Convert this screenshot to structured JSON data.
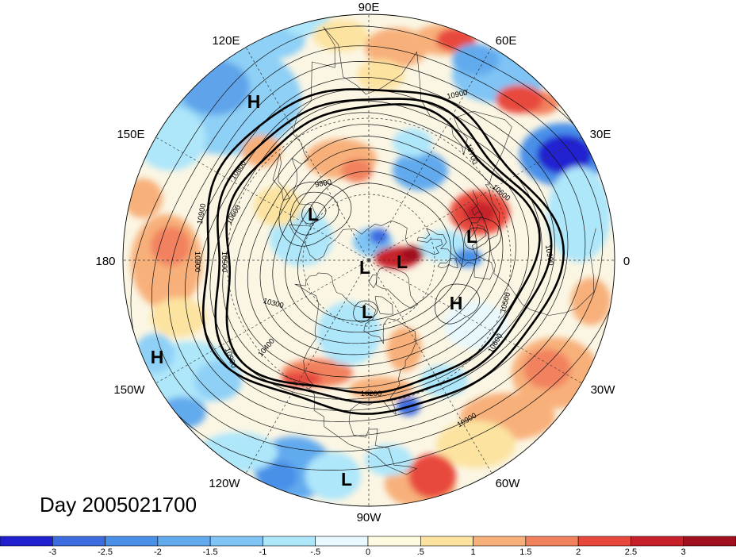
{
  "title": "Day 2005021700",
  "longitude_labels": [
    "90E",
    "60E",
    "30E",
    "0",
    "30W",
    "60W",
    "90W",
    "120W",
    "150W",
    "180",
    "150E",
    "120E"
  ],
  "centers": [
    "H",
    "L",
    "L",
    "L",
    "L",
    "H",
    "L",
    "H",
    "L"
  ],
  "contour_labels": [
    "10900",
    "10700",
    "10800",
    "9800",
    "10600",
    "10600",
    "10900",
    "10900",
    "10500",
    "10300",
    "10400",
    "10900",
    "10200",
    "10500",
    "10600",
    "10900",
    "10900"
  ],
  "colorbar": {
    "labels": [
      "-3",
      "-2.5",
      "-2",
      "-1.5",
      "-1",
      "-.5",
      "0",
      ".5",
      "1",
      "1.5",
      "2",
      "2.5",
      "3"
    ],
    "colors": [
      "#2020d0",
      "#3d6ce0",
      "#4a90e8",
      "#62aaee",
      "#7fc4f5",
      "#aee6fa",
      "#e8f8fd",
      "#fffbe0",
      "#fce3a0",
      "#f8b07a",
      "#f2825e",
      "#e8483c",
      "#c8202a",
      "#a0101e"
    ]
  }
}
